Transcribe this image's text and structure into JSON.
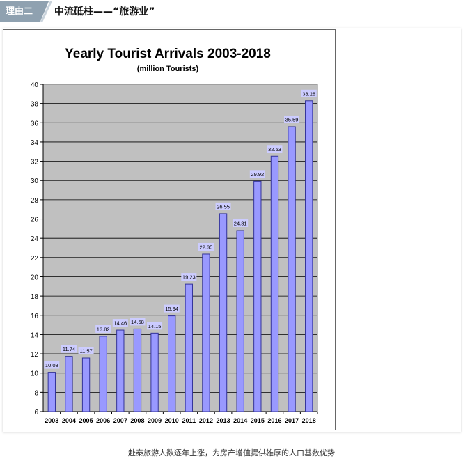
{
  "header": {
    "tag": "理由二",
    "headline": "中流砥柱——“旅游业”"
  },
  "caption": "赴泰旅游人数逐年上涨，为房产增值提供雄厚的人口基数优势",
  "chart_data": {
    "type": "bar",
    "title": "Yearly Tourist Arrivals 2003-2018",
    "subtitle": "(million Tourists)",
    "categories": [
      "2003",
      "2004",
      "2005",
      "2006",
      "2007",
      "2008",
      "2009",
      "2010",
      "2011",
      "2012",
      "2013",
      "2014",
      "2015",
      "2016",
      "2017",
      "2018"
    ],
    "values": [
      10.08,
      11.74,
      11.57,
      13.82,
      14.46,
      14.58,
      14.15,
      15.94,
      19.23,
      22.35,
      26.55,
      24.81,
      29.92,
      32.53,
      35.59,
      38.28
    ],
    "data_labels": [
      "10.08",
      "11.74",
      "11.57",
      "13.82",
      "14.46",
      "14.58",
      "14.15",
      "15.94",
      "19.23",
      "22.35",
      "26.55",
      "24.81",
      "29.92",
      "32.53",
      "35.59",
      "38.28"
    ],
    "y_ticks": [
      "6",
      "8",
      "10",
      "12",
      "14",
      "16",
      "18",
      "20",
      "22",
      "24",
      "26",
      "28",
      "30",
      "32",
      "34",
      "36",
      "38",
      "40"
    ],
    "ylim": [
      6,
      40
    ],
    "grid": true,
    "colors": {
      "bar_fill": "#9999ff",
      "bar_stroke": "#333399",
      "plot_bg": "#c0c0c0",
      "label_bg": "#ccccff",
      "grid": "#000000"
    }
  }
}
